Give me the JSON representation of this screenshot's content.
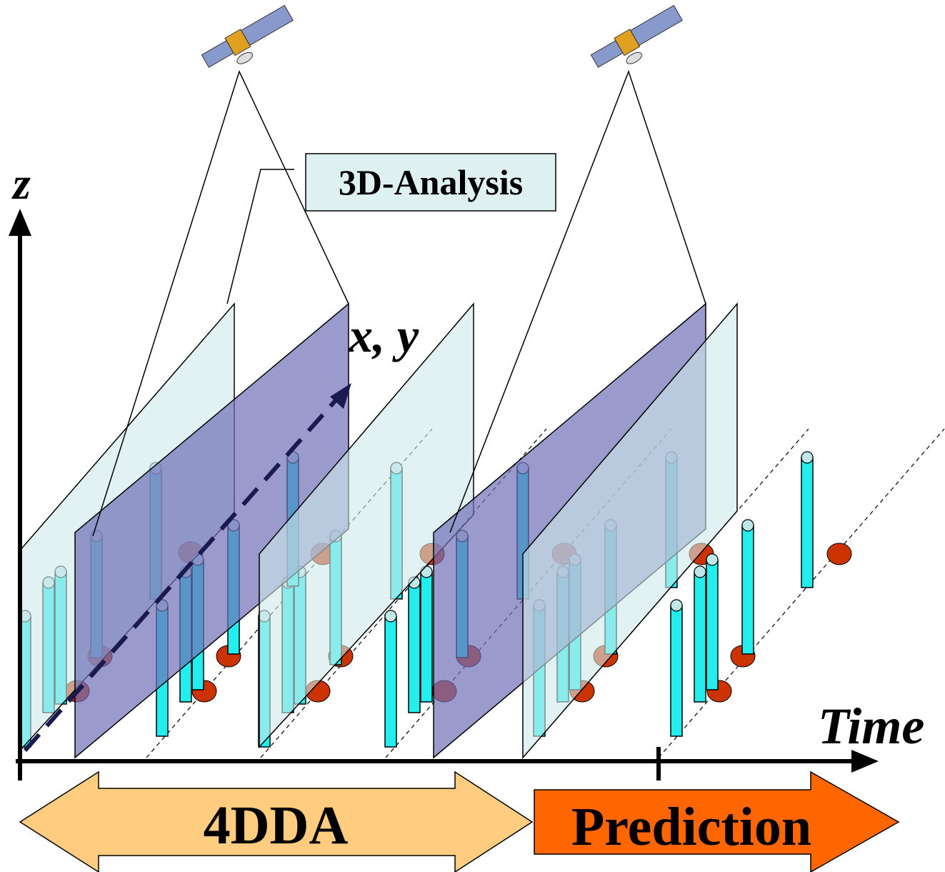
{
  "labels": {
    "z": "z",
    "analysis": "3D-Analysis",
    "xy": "x, y",
    "time": "Time",
    "assimilation": "4DDA",
    "prediction": "Prediction"
  }
}
